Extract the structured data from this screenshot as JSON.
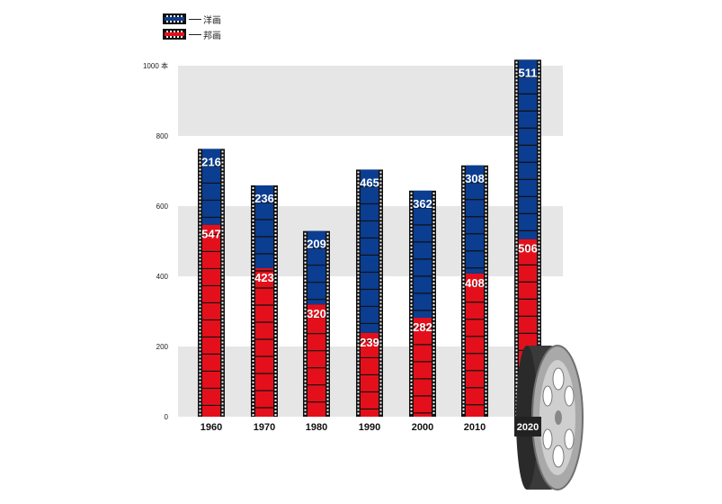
{
  "legend": {
    "foreign_label": "洋画",
    "domestic_label": "邦画"
  },
  "colors": {
    "foreign": "#0b3d91",
    "domestic": "#e3101b",
    "band": "#e6e6e6",
    "film_edge": "#111111"
  },
  "axis": {
    "top_label": "1000 本"
  },
  "chart_data": {
    "type": "bar",
    "stacked": true,
    "categories": [
      "1960",
      "1970",
      "1980",
      "1990",
      "2000",
      "2010",
      "2020"
    ],
    "series": [
      {
        "name": "邦画",
        "values": [
          547,
          423,
          320,
          239,
          282,
          408,
          506
        ]
      },
      {
        "name": "洋画",
        "values": [
          216,
          236,
          209,
          465,
          362,
          308,
          511
        ]
      }
    ],
    "y_ticks": [
      0,
      200,
      400,
      600,
      800,
      1000
    ],
    "ylim": [
      0,
      1000
    ],
    "grid": "alternating bands",
    "legend_position": "top-left"
  }
}
